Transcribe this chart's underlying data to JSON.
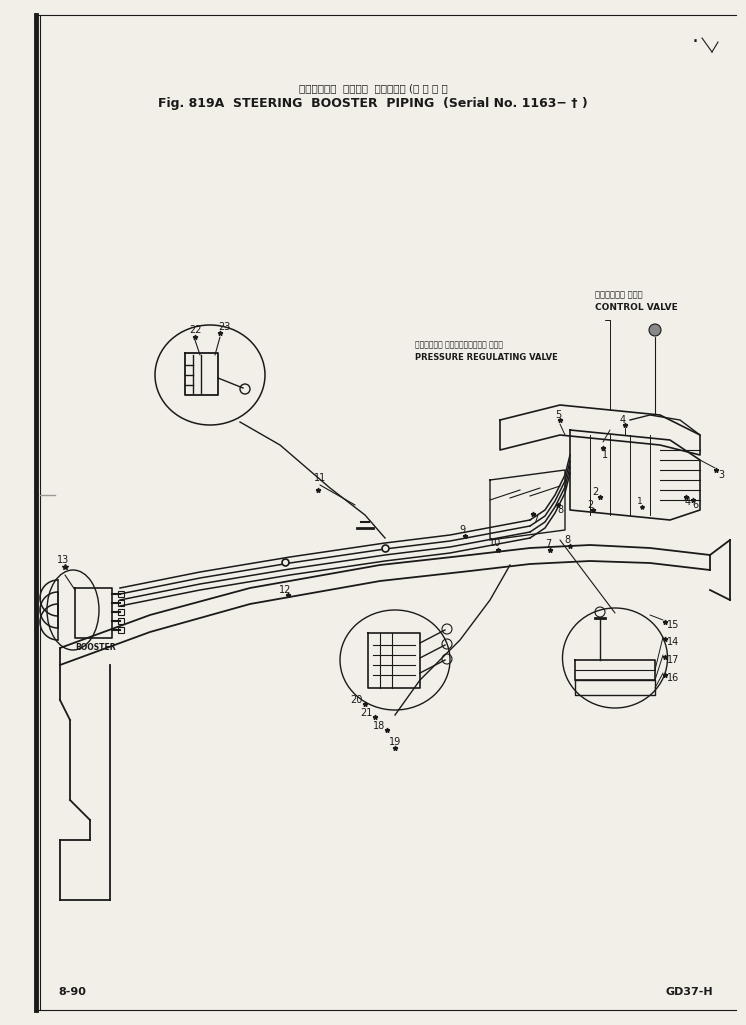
{
  "title_jp": "ステアリング  ブースタ  パイピング (適 用 号 機",
  "title_en": "Fig. 819A  STEERING  BOOSTER  PIPING",
  "title_serial": "(Serial No. 1163− † )",
  "page_left": "8-90",
  "page_right": "GD37-H",
  "bg_color": "#f2efe8",
  "line_color": "#1a1a1a",
  "label_cv_jp": "コントロール バルブ",
  "label_cv_en": "CONTROL VALVE",
  "label_prv_jp": "プレッシャー レギュレーター バルブ",
  "label_prv_en": "PRESSURE REGULATING VALVE",
  "label_booster": "BOOSTER"
}
